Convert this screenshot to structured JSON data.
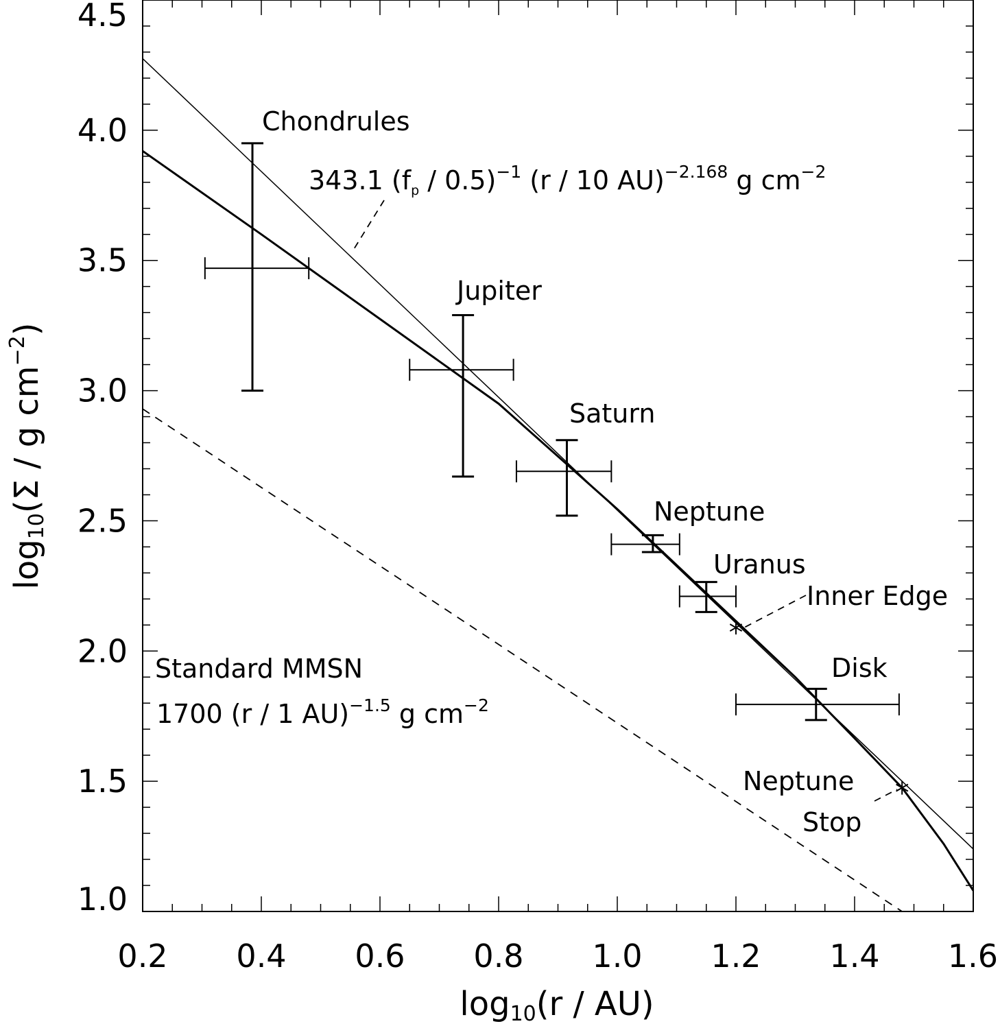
{
  "chart_data": {
    "type": "scatter",
    "title": "",
    "xlabel": {
      "prefix": "log",
      "sub": "10",
      "suffix": "(r / AU)"
    },
    "ylabel": {
      "prefix": "log",
      "sub": "10",
      "suffix": "(Σ / g cm",
      "sup": "−2",
      "close": ")"
    },
    "xlim": [
      0.2,
      1.6
    ],
    "ylim": [
      1.0,
      4.5
    ],
    "xticks": [
      0.2,
      0.4,
      0.6,
      0.8,
      1.0,
      1.2,
      1.4,
      1.6
    ],
    "xtick_labels": [
      "0.2",
      "0.4",
      "0.6",
      "0.8",
      "1.0",
      "1.2",
      "1.4",
      "1.6"
    ],
    "yticks": [
      1.0,
      1.5,
      2.0,
      2.5,
      3.0,
      3.5,
      4.0,
      4.5
    ],
    "ytick_labels": [
      "1.0",
      "1.5",
      "2.0",
      "2.5",
      "3.0",
      "3.5",
      "4.0",
      "4.5"
    ],
    "grid": false,
    "points": [
      {
        "name": "Chondrules",
        "x": 0.385,
        "y": 3.47,
        "xerr": [
          0.305,
          0.48
        ],
        "yerr": [
          3.0,
          3.95
        ]
      },
      {
        "name": "Jupiter",
        "x": 0.74,
        "y": 3.08,
        "xerr": [
          0.65,
          0.825
        ],
        "yerr": [
          2.67,
          3.29
        ]
      },
      {
        "name": "Saturn",
        "x": 0.915,
        "y": 2.69,
        "xerr": [
          0.83,
          0.99
        ],
        "yerr": [
          2.52,
          2.81
        ]
      },
      {
        "name": "Neptune",
        "x": 1.06,
        "y": 2.41,
        "xerr": [
          0.99,
          1.105
        ],
        "yerr": [
          2.38,
          2.445
        ]
      },
      {
        "name": "Uranus",
        "x": 1.15,
        "y": 2.21,
        "xerr": [
          1.105,
          1.2
        ],
        "yerr": [
          2.15,
          2.265
        ]
      },
      {
        "name": "Disk",
        "x": 1.335,
        "y": 1.795,
        "xerr": [
          1.2,
          1.475
        ],
        "yerr": [
          1.735,
          1.855
        ]
      }
    ],
    "series": [
      {
        "name": "power-law fit",
        "style": "thin",
        "x": [
          0.2,
          1.6
        ],
        "y": [
          4.275,
          1.24
        ]
      },
      {
        "name": "model profile",
        "style": "thick",
        "x": [
          0.2,
          0.4,
          0.6,
          0.8,
          1.0,
          1.2,
          1.3,
          1.4,
          1.48,
          1.55,
          1.6
        ],
        "y": [
          3.92,
          3.6,
          3.275,
          2.95,
          2.545,
          2.115,
          1.9,
          1.665,
          1.475,
          1.26,
          1.08
        ]
      },
      {
        "name": "Standard MMSN",
        "style": "dashed",
        "x": [
          0.2,
          1.48
        ],
        "y": [
          2.93,
          1.0
        ]
      }
    ],
    "markers": [
      {
        "name": "Inner Edge",
        "x": 1.2,
        "y": 2.09
      },
      {
        "name": "Neptune Stop",
        "x": 1.48,
        "y": 1.475
      }
    ],
    "annotations": {
      "chondrules": "Chondrules",
      "jupiter": "Jupiter",
      "saturn": "Saturn",
      "neptune": "Neptune",
      "uranus": "Uranus",
      "inner_edge": "Inner Edge",
      "disk": "Disk",
      "neptune_stop_line1": "Neptune",
      "neptune_stop_line2": "Stop",
      "mmsn_title": "Standard MMSN",
      "mmsn_formula": {
        "a": "1700 (r / 1 AU)",
        "sup1": "−1.5",
        "b": " g cm",
        "sup2": "−2"
      },
      "fit_formula": {
        "a": "343.1 (f",
        "sub": "p",
        "b": " / 0.5)",
        "sup1": "−1",
        "c": " (r / 10 AU)",
        "sup2": "−2.168",
        "d": " g cm",
        "sup3": "−2"
      }
    },
    "colors": {
      "line": "#000000",
      "background": "#ffffff"
    }
  }
}
